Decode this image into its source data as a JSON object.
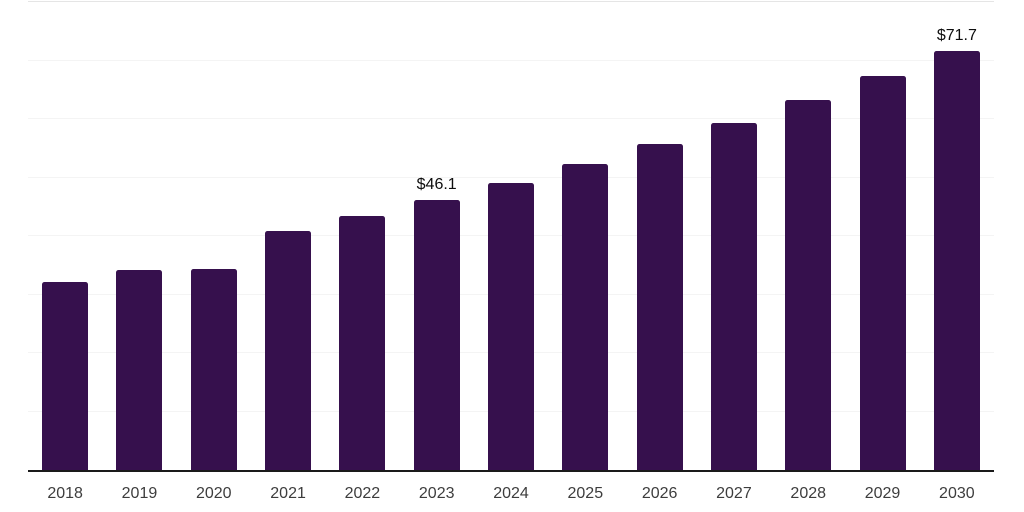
{
  "chart_data": {
    "type": "bar",
    "title": "",
    "xlabel": "",
    "ylabel": "",
    "categories": [
      "2018",
      "2019",
      "2020",
      "2021",
      "2022",
      "2023",
      "2024",
      "2025",
      "2026",
      "2027",
      "2028",
      "2029",
      "2030"
    ],
    "values": [
      32.2,
      34.2,
      34.4,
      40.9,
      43.4,
      46.1,
      49.1,
      52.3,
      55.7,
      59.3,
      63.2,
      67.3,
      71.7
    ],
    "value_unit": "USD",
    "labeled_points": [
      {
        "category": "2023",
        "label": "$46.1"
      },
      {
        "category": "2030",
        "label": "$71.7"
      }
    ],
    "ylim": [
      0,
      80
    ],
    "gridline_step": 10,
    "grid": "horizontal",
    "legend": "none",
    "y_tick_labels_visible": false,
    "colors": {
      "bar": "#36104d",
      "axis": "#1a1a1a",
      "gridline": "#f4f4f4",
      "gridline_top": "#e5e5e5",
      "tick_text": "#3d3d3d",
      "label_text": "#0d0d0d",
      "background": "#ffffff"
    }
  }
}
